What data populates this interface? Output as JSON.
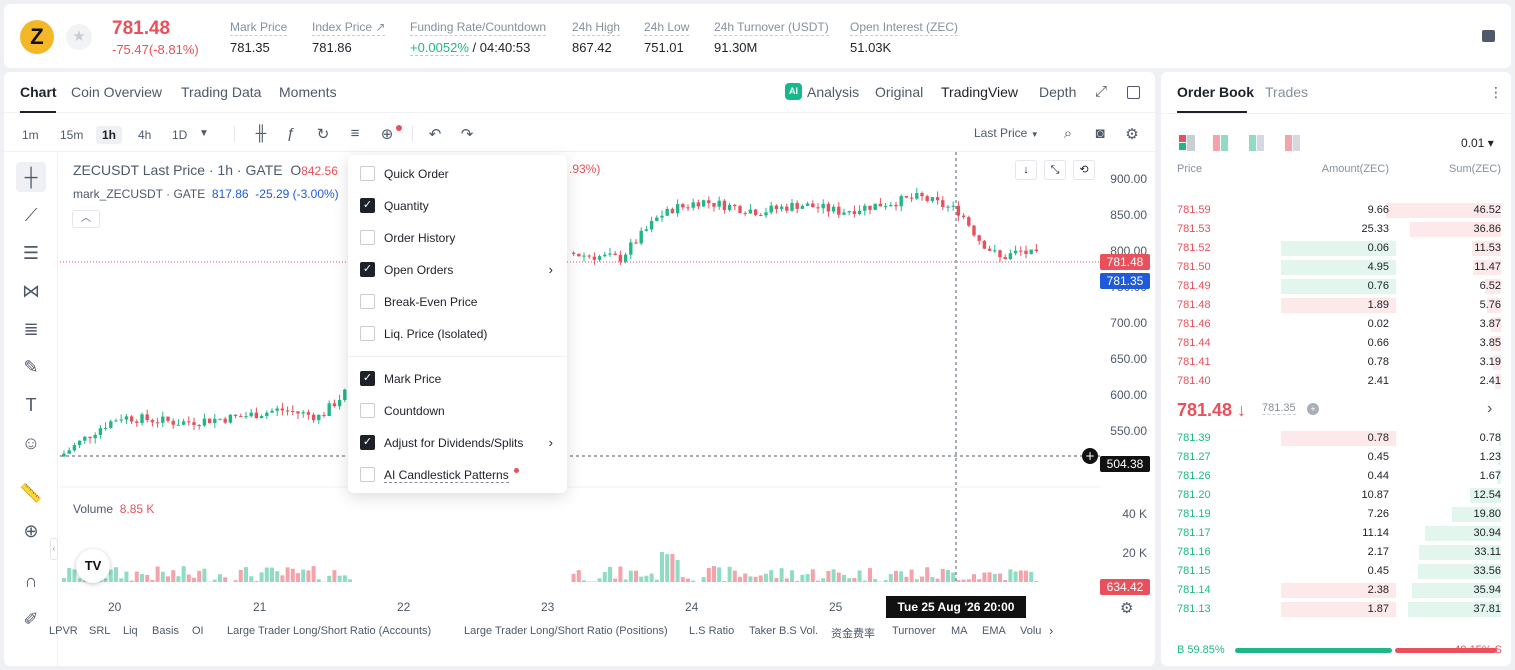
{
  "header": {
    "coin_symbol": "Z",
    "price": "781.48",
    "change": "-75.47(-8.81%)",
    "stats": [
      {
        "label": "Mark Price",
        "value": "781.35"
      },
      {
        "label": "Index Price ↗",
        "value": "781.86"
      },
      {
        "label": "Funding Rate/Countdown",
        "value_green": "+0.0052%",
        "value": " / 04:40:53"
      },
      {
        "label": "24h High",
        "value": "867.42"
      },
      {
        "label": "24h Low",
        "value": "751.01"
      },
      {
        "label": "24h Turnover (USDT)",
        "value": "91.30M"
      },
      {
        "label": "Open Interest (ZEC)",
        "value": "51.03K"
      }
    ]
  },
  "chart_tabs": [
    "Chart",
    "Coin Overview",
    "Trading Data",
    "Moments"
  ],
  "views": {
    "ai": "AI",
    "analysis": "Analysis",
    "original": "Original",
    "tradingview": "TradingView",
    "depth": "Depth"
  },
  "intervals": [
    "1m",
    "15m",
    "1h",
    "4h",
    "1D"
  ],
  "last_price_select": "Last Price",
  "legend": {
    "symbol": "ZECUSDT Last Price · 1h · GATE",
    "open_label": "O",
    "open_value": "842.56",
    "pct_fragment": ".93%)",
    "mark_name": "mark_ZECUSDT · GATE",
    "mark_value": "817.86",
    "mark_change": "-25.29 (-3.00%)"
  },
  "volume_legend": {
    "label": "Volume",
    "value": "8.85 K"
  },
  "tv_logo": "TV",
  "price_axis": [
    "900.00",
    "850.00",
    "800.00",
    "750.00",
    "700.00",
    "650.00",
    "600.00",
    "550.00"
  ],
  "volume_axis": [
    "40 K",
    "20 K"
  ],
  "price_tags": {
    "last": "781.48",
    "mark": "781.35",
    "cross": "504.38",
    "vol_cross": "634.42"
  },
  "date_axis": [
    "20",
    "21",
    "22",
    "23",
    "24",
    "25"
  ],
  "crosshair_date": "Tue 25 Aug '26   20:00",
  "indicators": [
    "LPVR",
    "SRL",
    "Liq",
    "Basis",
    "OI",
    "Large Trader Long/Short Ratio (Accounts)",
    "Large Trader Long/Short Ratio (Positions)",
    "L.S Ratio",
    "Taker B.S Vol.",
    "资金费率",
    "Turnover",
    "MA",
    "EMA",
    "Volu"
  ],
  "settings_menu": [
    {
      "label": "Quick Order",
      "checked": false
    },
    {
      "label": "Quantity",
      "checked": true
    },
    {
      "label": "Order History",
      "checked": false
    },
    {
      "label": "Open Orders",
      "checked": true,
      "arrow": true
    },
    {
      "label": "Break-Even Price",
      "checked": false
    },
    {
      "label": "Liq. Price (Isolated)",
      "checked": false
    },
    {
      "label": "Mark Price",
      "checked": true
    },
    {
      "label": "Countdown",
      "checked": false
    },
    {
      "label": "Adjust for Dividends/Splits",
      "checked": true,
      "arrow": true
    },
    {
      "label": "AI Candlestick Patterns",
      "checked": false,
      "dot": true
    }
  ],
  "order_book": {
    "tabs": [
      "Order Book",
      "Trades"
    ],
    "tick_size": "0.01 ▾",
    "headers": {
      "price": "Price",
      "amount": "Amount(ZEC)",
      "sum": "Sum(ZEC)"
    },
    "asks": [
      {
        "price": "781.59",
        "amount": "9.66",
        "sum": "46.52",
        "amt_hl": 0
      },
      {
        "price": "781.53",
        "amount": "25.33",
        "sum": "36.86",
        "amt_hl": 0
      },
      {
        "price": "781.52",
        "amount": "0.06",
        "sum": "11.53",
        "amt_hl": 1
      },
      {
        "price": "781.50",
        "amount": "4.95",
        "sum": "11.47",
        "amt_hl": 1
      },
      {
        "price": "781.49",
        "amount": "0.76",
        "sum": "6.52",
        "amt_hl": 1
      },
      {
        "price": "781.48",
        "amount": "1.89",
        "sum": "5.76",
        "amt_hl": 2
      },
      {
        "price": "781.46",
        "amount": "0.02",
        "sum": "3.87",
        "amt_hl": 0
      },
      {
        "price": "781.44",
        "amount": "0.66",
        "sum": "3.85",
        "amt_hl": 0
      },
      {
        "price": "781.41",
        "amount": "0.78",
        "sum": "3.19",
        "amt_hl": 0
      },
      {
        "price": "781.40",
        "amount": "2.41",
        "sum": "2.41",
        "amt_hl": 0
      }
    ],
    "mid": {
      "price": "781.48 ↓",
      "mark": "781.35"
    },
    "bids": [
      {
        "price": "781.39",
        "amount": "0.78",
        "sum": "0.78",
        "amt_hl": 2
      },
      {
        "price": "781.27",
        "amount": "0.45",
        "sum": "1.23",
        "amt_hl": 0
      },
      {
        "price": "781.26",
        "amount": "0.44",
        "sum": "1.67",
        "amt_hl": 0
      },
      {
        "price": "781.20",
        "amount": "10.87",
        "sum": "12.54",
        "amt_hl": 0
      },
      {
        "price": "781.19",
        "amount": "7.26",
        "sum": "19.80",
        "amt_hl": 0
      },
      {
        "price": "781.17",
        "amount": "11.14",
        "sum": "30.94",
        "amt_hl": 0
      },
      {
        "price": "781.16",
        "amount": "2.17",
        "sum": "33.11",
        "amt_hl": 0
      },
      {
        "price": "781.15",
        "amount": "0.45",
        "sum": "33.56",
        "amt_hl": 0
      },
      {
        "price": "781.14",
        "amount": "2.38",
        "sum": "35.94",
        "amt_hl": 2
      },
      {
        "price": "781.13",
        "amount": "1.87",
        "sum": "37.81",
        "amt_hl": 2
      }
    ],
    "buy_ratio": "B 59.85%",
    "sell_ratio": "40.15% S",
    "buy_fraction": 0.5985
  },
  "colors": {
    "up": "#1fb787",
    "down": "#e8505b",
    "mark": "#1f5bd8"
  }
}
